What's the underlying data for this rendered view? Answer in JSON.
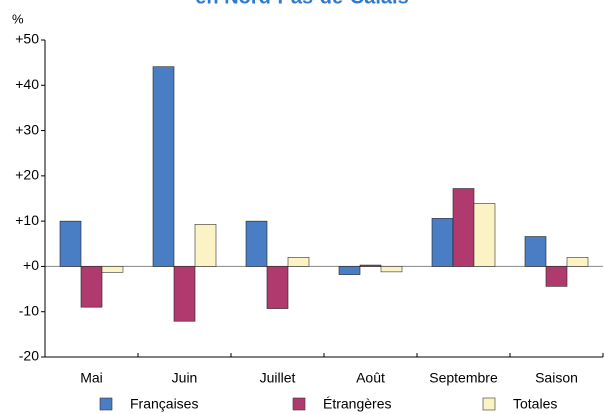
{
  "chart_data": {
    "type": "bar",
    "title": "en Nord-Pas-de-Calais",
    "y_label": "%",
    "categories": [
      "Mai",
      "Juin",
      "Juillet",
      "Août",
      "Septembre",
      "Saison"
    ],
    "series": [
      {
        "name": "Françaises",
        "color": "#4a7ec4",
        "values": [
          10,
          44.1,
          10,
          -1.8,
          10.6,
          6.6
        ]
      },
      {
        "name": "Étrangères",
        "color": "#b03a6e",
        "values": [
          -9,
          -12.1,
          -9.3,
          0.3,
          17.2,
          -4.4
        ]
      },
      {
        "name": "Totales",
        "color": "#fbf3c4",
        "values": [
          -1.3,
          9.3,
          2,
          -1.2,
          13.9,
          2
        ]
      }
    ],
    "ylim": [
      -20,
      50
    ],
    "yticks": [
      {
        "value": 50,
        "label": "+50"
      },
      {
        "value": 40,
        "label": "+40"
      },
      {
        "value": 30,
        "label": "+30"
      },
      {
        "value": 20,
        "label": "+20"
      },
      {
        "value": 10,
        "label": "+10"
      },
      {
        "value": 0,
        "label": "+0"
      },
      -10,
      -20
    ],
    "grid": false,
    "legend": "bottom"
  }
}
